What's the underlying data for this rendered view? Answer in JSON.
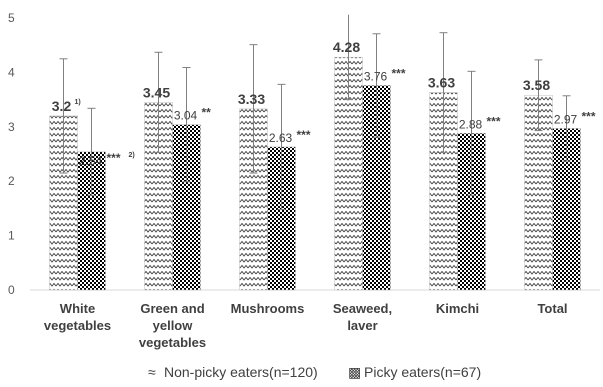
{
  "chart_data": {
    "type": "bar",
    "ylim": [
      0,
      5
    ],
    "yticks": [
      "0",
      "1",
      "2",
      "3",
      "4",
      "5"
    ],
    "grid": false,
    "legend_position": "bottom",
    "categories": [
      [
        "White",
        "vegetables"
      ],
      [
        "Green and",
        "yellow",
        "vegetables"
      ],
      [
        "Mushrooms"
      ],
      [
        "Seaweed,",
        "laver"
      ],
      [
        "Kimchi"
      ],
      [
        "Total"
      ]
    ],
    "series": [
      {
        "name": "Non-picky eaters(n=120)",
        "pattern": "zigzag",
        "legend_symbol": "≈",
        "values": [
          3.2,
          3.45,
          3.33,
          4.28,
          3.63,
          3.58
        ],
        "labels": [
          "3.2",
          "3.45",
          "3.33",
          "4.28",
          "3.63",
          "3.58"
        ],
        "label_sup": [
          "1)",
          "",
          "",
          "",
          "",
          ""
        ],
        "error": [
          1.05,
          0.92,
          1.18,
          0.78,
          1.1,
          0.65
        ]
      },
      {
        "name": "Picky eaters(n=67)",
        "pattern": "checker",
        "legend_symbol": "▩",
        "values": [
          2.54,
          3.04,
          2.63,
          3.76,
          2.88,
          2.97
        ],
        "labels": [
          "2.54",
          "3.04",
          "2.63",
          "3.76",
          "2.88",
          "2.97"
        ],
        "significance": [
          "***",
          "**",
          "***",
          "***",
          "***",
          "***"
        ],
        "sig_sup": [
          "2)",
          "",
          "",
          "",
          "",
          ""
        ],
        "error": [
          0.8,
          1.05,
          1.15,
          0.95,
          1.14,
          0.6
        ]
      }
    ],
    "colors": {
      "axis": "#d9d9d9",
      "bar": "#404040",
      "error": "#808080"
    }
  }
}
